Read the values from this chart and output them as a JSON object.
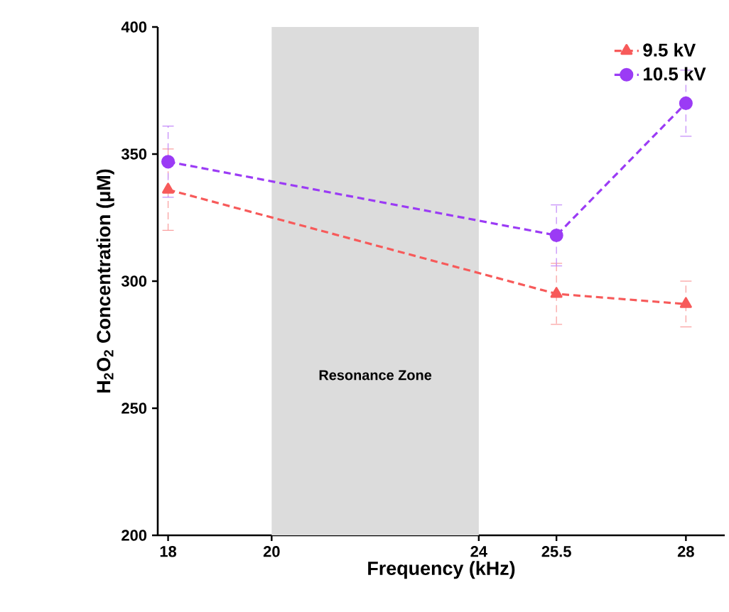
{
  "chart_data": {
    "type": "line",
    "xlabel": "Frequency (kHz)",
    "ylabel": "H$_{2}$O$_{2}$ Concentration (μM)",
    "x": [
      18,
      25.5,
      28
    ],
    "series": [
      {
        "name": "9.5 kV",
        "color": "#f75a5a",
        "values": [
          336,
          295,
          291
        ],
        "errors": [
          16,
          12,
          9
        ],
        "marker": "triangle"
      },
      {
        "name": "10.5 kV",
        "color": "#9b3bf5",
        "values": [
          347,
          318,
          370
        ],
        "errors": [
          14,
          12,
          13
        ],
        "marker": "circle"
      }
    ],
    "xlim": [
      17.8,
      28.75
    ],
    "xticks": [
      18,
      20,
      24,
      25.5,
      28
    ],
    "ylim": [
      200,
      400
    ],
    "yticks": [
      200,
      250,
      300,
      350,
      400
    ],
    "bands": [
      {
        "axis": "x",
        "from": 20,
        "to": 24,
        "label": "Resonance Zone",
        "color": "#dcdcdc"
      }
    ],
    "line_style": "dashed",
    "legend": "top right",
    "grid": false
  }
}
